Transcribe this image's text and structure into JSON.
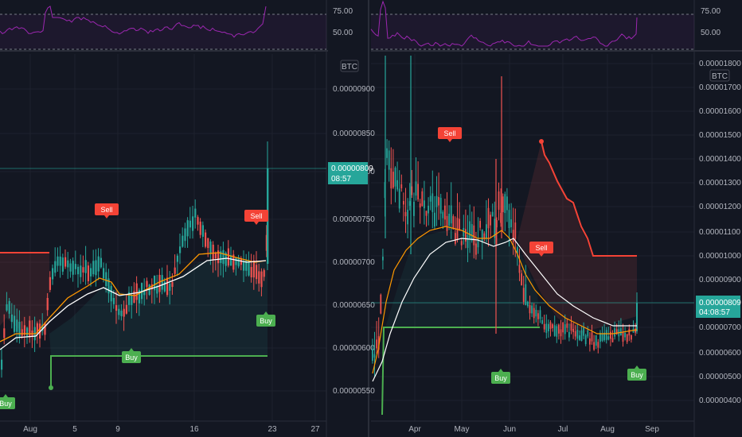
{
  "chart_data": [
    {
      "type": "candlestick",
      "panel": "left",
      "pair_label": "BTC",
      "x_ticks": [
        "Aug",
        "5",
        "9",
        "16",
        "23",
        "27"
      ],
      "y_ticks": [
        "0.00000900",
        "0.00000850",
        "0.00000800",
        "0.00000750",
        "0.00000700",
        "0.00000650",
        "0.00000600",
        "0.00000550"
      ],
      "ylim": [
        5.2e-06,
        9.6e-06
      ],
      "last_price": "0.00000809",
      "countdown": "08:57",
      "rsi": {
        "ticks": [
          "75.00",
          "50.00"
        ],
        "ylim": [
          20,
          85
        ],
        "overbought": 70,
        "oversold": 30
      },
      "signals": [
        "Buy",
        "Sell",
        "Buy",
        "Sell",
        "Buy"
      ],
      "colors": {
        "up": "#26a69a",
        "down": "#ef5350",
        "ema_fast": "#ff9800",
        "ema_slow": "#ffffff",
        "rsi": "#9c27b0",
        "buy": "#4caf50",
        "sell": "#f44336"
      }
    },
    {
      "type": "candlestick",
      "panel": "right",
      "pair_label": "BTC",
      "x_ticks": [
        "Apr",
        "May",
        "Jun",
        "Jul",
        "Aug",
        "Sep"
      ],
      "y_ticks": [
        "0.00001700",
        "0.00001600",
        "0.00001500",
        "0.00001400",
        "0.00001300",
        "0.00001200",
        "0.00001100",
        "0.00001000",
        "0.00000900",
        "0.00000800",
        "0.00000700",
        "0.00000600",
        "0.00000500",
        "0.00000400"
      ],
      "y_top_partial": "0.00001800",
      "last_price": "0.00000809",
      "countdown": "04:08:57",
      "rsi": {
        "ticks": [
          "75.00",
          "50.00"
        ]
      },
      "signals": [
        "Sell",
        "Sell",
        "Buy",
        "Buy"
      ]
    }
  ]
}
